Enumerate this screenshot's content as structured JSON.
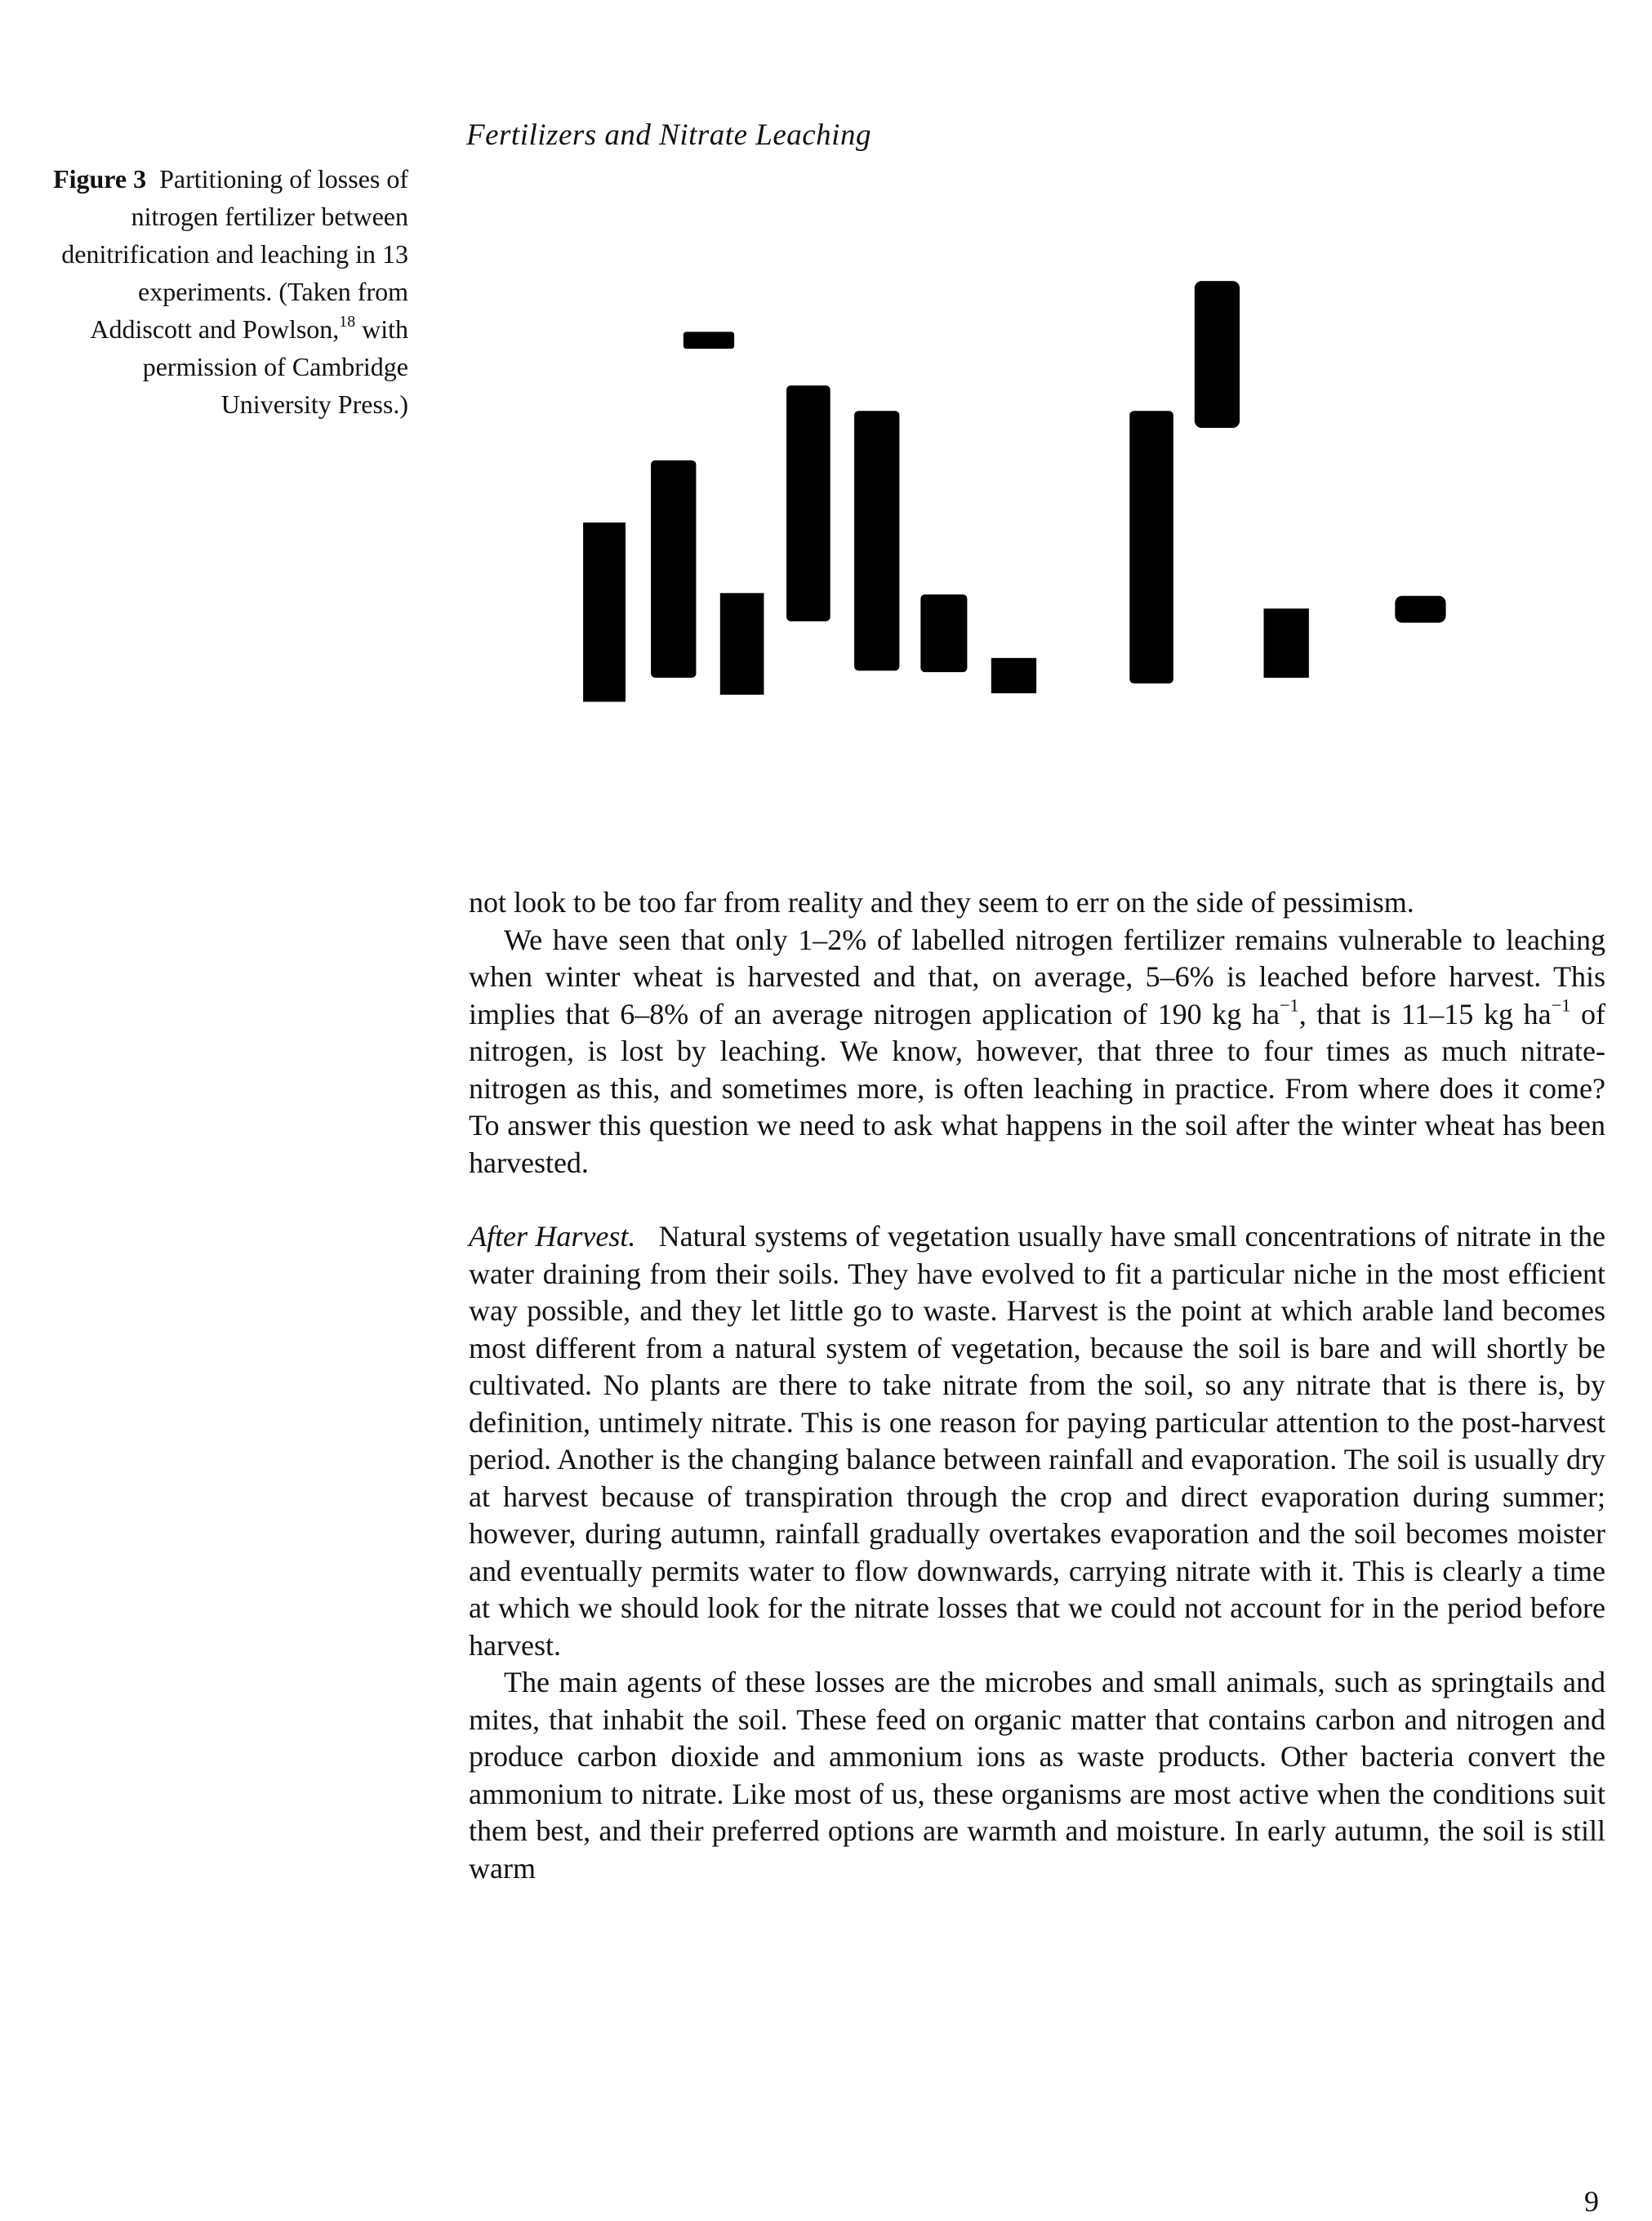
{
  "header": {
    "running_title": "Fertilizers and Nitrate Leaching"
  },
  "figure": {
    "label": "Figure 3",
    "caption": "Partitioning of losses of nitrogen fertilizer between denitrification and leaching in 13 experiments. (Taken from Addiscott and Powlson,",
    "ref": "18",
    "caption_end": " with permission of Cambridge University Press.)"
  },
  "body": {
    "paragraphs": [
      {
        "text": "not look to be too far from reality and they seem to err on the side of pessimism."
      },
      {
        "text": "We have seen that only 1–2% of labelled nitrogen fertilizer remains vulnerable to leaching when winter wheat is harvested and that, on average, 5–6% is leached before harvest. This implies that 6–8% of an average nitrogen application of 190 kg ha",
        "sup1": "−1",
        "text2": ", that is 11–15 kg ha",
        "sup2": "−1",
        "text3": " of nitrogen, is lost by leaching. We know, however, that three to four times as much nitrate-nitrogen as this, and sometimes more, is often leaching in practice. From where does it come? To answer this question we need to ask what happens in the soil after the winter wheat has been harvested."
      },
      {
        "heading": "After Harvest.",
        "text": "Natural systems of vegetation usually have small concentrations of nitrate in the water draining from their soils. They have evolved to fit a particular niche in the most efficient way possible, and they let little go to waste. Harvest is the point at which arable land becomes most different from a natural system of vegetation, because the soil is bare and will shortly be cultivated. No plants are there to take nitrate from the soil, so any nitrate that is there is, by definition, untimely nitrate. This is one reason for paying particular attention to the post-harvest period. Another is the changing balance between rainfall and evaporation. The soil is usually dry at harvest because of transpiration through the crop and direct evaporation during summer; however, during autumn, rainfall gradually overtakes evaporation and the soil becomes moister and eventually permits water to flow downwards, carrying nitrate with it. This is clearly a time at which we should look for the nitrate losses that we could not account for in the period before harvest."
      },
      {
        "text": "The main agents of these losses are the microbes and small animals, such as springtails and mites, that inhabit the soil. These feed on organic matter that contains carbon and nitrogen and produce carbon dioxide and ammonium ions as waste products. Other bacteria convert the ammonium to nitrate. Like most of us, these organisms are most active when the conditions suit them best, and their preferred options are warmth and moisture. In early autumn, the soil is still warm"
      }
    ]
  },
  "page_number": "9"
}
